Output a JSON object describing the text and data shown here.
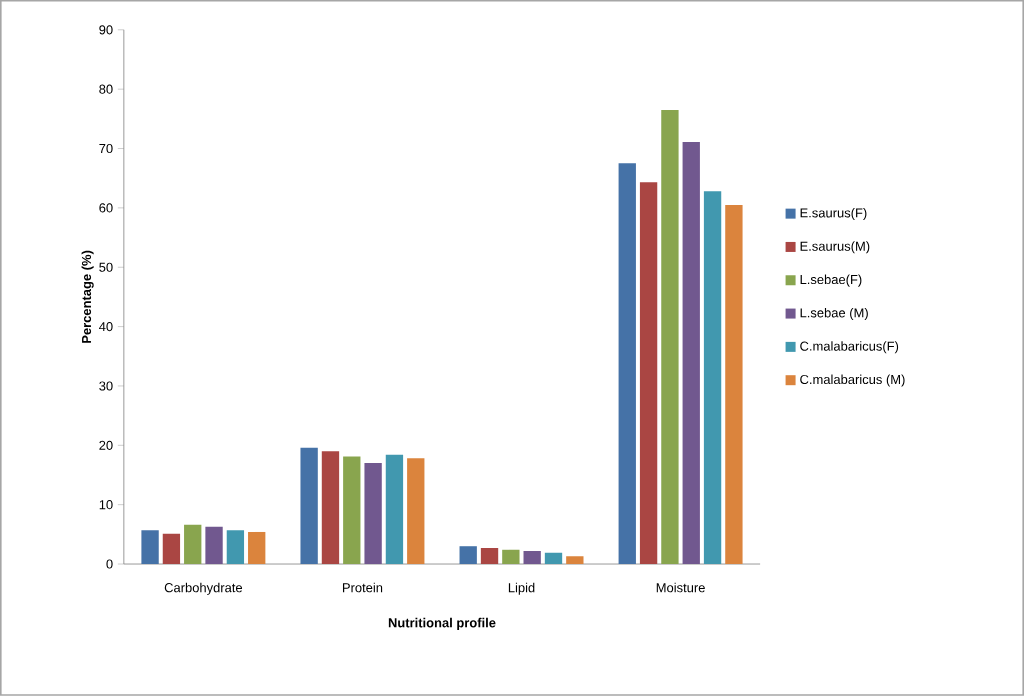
{
  "chart_data": {
    "type": "bar",
    "xlabel": "Nutritional profile",
    "ylabel": "Percentage (%)",
    "categories": [
      "Carbohydrate",
      "Protein",
      "Lipid",
      "Moisture"
    ],
    "series": [
      {
        "name": "E.saurus(F)",
        "color": "#4572a7",
        "values": [
          5.7,
          19.6,
          3.0,
          67.5
        ]
      },
      {
        "name": "E.saurus(M)",
        "color": "#aa4643",
        "values": [
          5.1,
          19.0,
          2.7,
          64.3
        ]
      },
      {
        "name": "L.sebae(F)",
        "color": "#89a54e",
        "values": [
          6.6,
          18.1,
          2.4,
          76.5
        ]
      },
      {
        "name": "L.sebae (M)",
        "color": "#71588f",
        "values": [
          6.3,
          17.0,
          2.2,
          71.1
        ]
      },
      {
        "name": "C.malabaricus(F)",
        "color": "#4198af",
        "values": [
          5.7,
          18.4,
          1.9,
          62.8
        ]
      },
      {
        "name": "C.malabaricus (M)",
        "color": "#db843d",
        "values": [
          5.4,
          17.8,
          1.3,
          60.5
        ]
      }
    ],
    "ylim": [
      0,
      90
    ],
    "yticks": [
      0,
      10,
      20,
      30,
      40,
      50,
      60,
      70,
      80,
      90
    ],
    "grid": false,
    "legend": "right"
  }
}
